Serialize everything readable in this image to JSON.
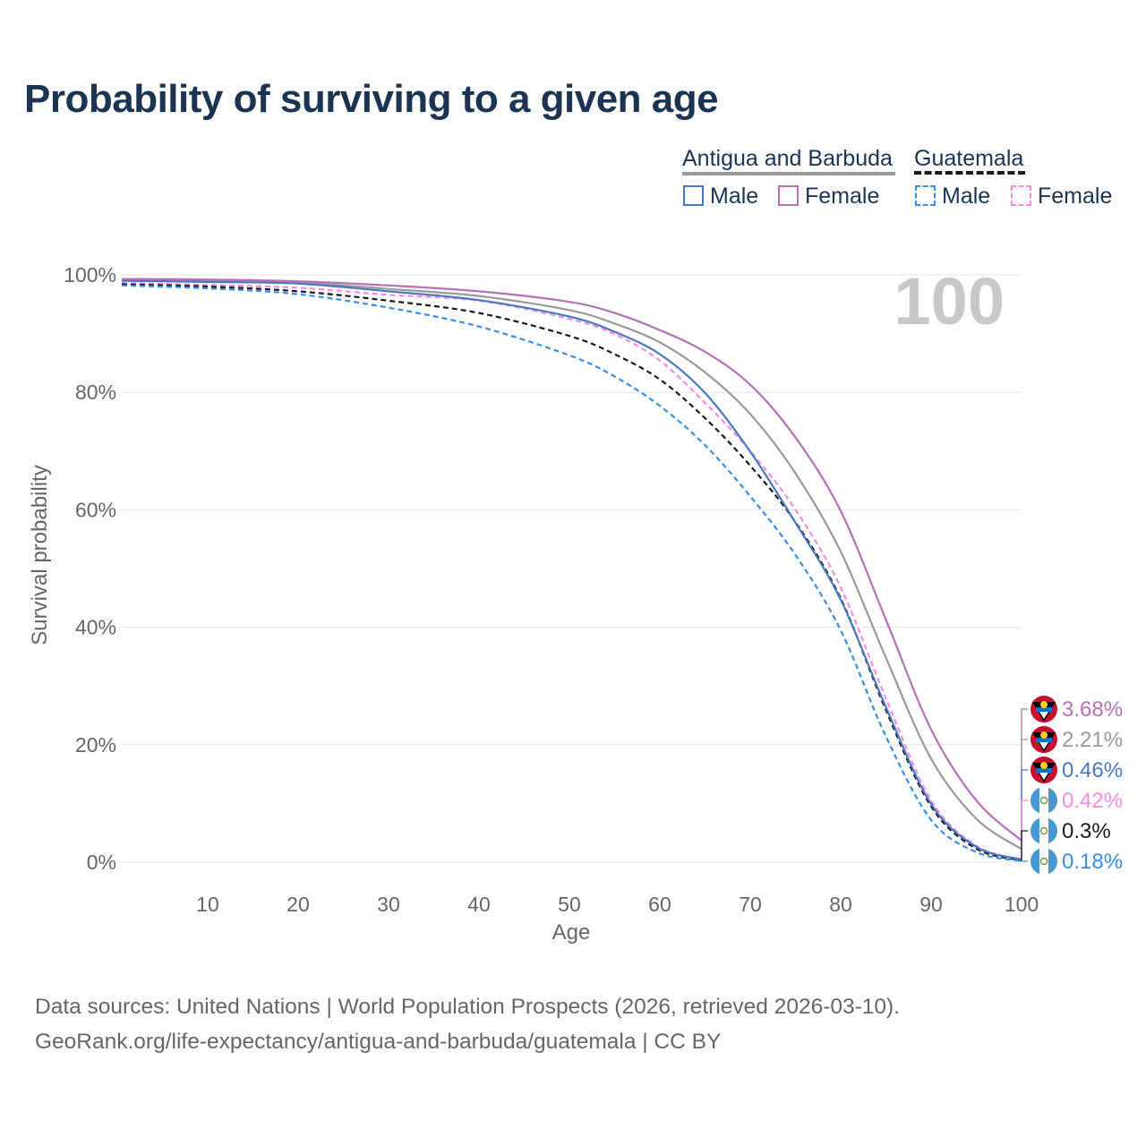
{
  "title": "Probability of surviving to a given age",
  "legend": {
    "country_a": "Antigua and Barbuda",
    "country_b": "Guatemala",
    "male": "Male",
    "female": "Female",
    "colors": {
      "a_male": "#4a78c0",
      "a_female": "#b471b4",
      "a_total": "#999999",
      "b_male": "#3a8ee8",
      "b_female": "#f58ae6",
      "b_total": "#1a1a1a"
    }
  },
  "age_watermark": "100",
  "end_labels": [
    "3.68%",
    "2.21%",
    "0.46%",
    "0.42%",
    "0.3%",
    "0.18%"
  ],
  "source": {
    "line1": "Data sources: United Nations | World Population Prospects (2026, retrieved 2026-03-10).",
    "line2": "GeoRank.org/life-expectancy/antigua-and-barbuda/guatemala | CC BY"
  },
  "chart_data": {
    "type": "line",
    "title": "Probability of surviving to a given age",
    "xlabel": "Age",
    "ylabel": "Survival probability",
    "xlim": [
      0.5,
      100
    ],
    "ylim": [
      0,
      100
    ],
    "xticks": [
      10,
      20,
      30,
      40,
      50,
      60,
      70,
      80,
      90,
      100
    ],
    "yticks": [
      0,
      20,
      40,
      60,
      80,
      100
    ],
    "ytick_labels": [
      "0%",
      "20%",
      "40%",
      "60%",
      "80%",
      "100%"
    ],
    "series": [
      {
        "name": "Antigua and Barbuda Female",
        "color": "#b471b4",
        "dashed": false,
        "end_label": "3.68%",
        "x": [
          0.5,
          10,
          20,
          30,
          40,
          50,
          55,
          60,
          65,
          70,
          75,
          80,
          85,
          90,
          95,
          100
        ],
        "y": [
          99.3,
          99.2,
          98.9,
          98.2,
          97.2,
          95.4,
          93.5,
          90.6,
          86.9,
          81.3,
          72.3,
          59.8,
          41.3,
          22.6,
          10.5,
          3.68
        ]
      },
      {
        "name": "Antigua and Barbuda Total",
        "color": "#999999",
        "dashed": false,
        "end_label": "2.21%",
        "x": [
          0.5,
          10,
          20,
          30,
          40,
          50,
          55,
          60,
          65,
          70,
          75,
          80,
          85,
          90,
          95,
          100
        ],
        "y": [
          99.1,
          99.0,
          98.7,
          97.6,
          96.4,
          94.0,
          91.7,
          88.5,
          83.4,
          76.3,
          66.2,
          52.9,
          34.8,
          17.6,
          7.4,
          2.21
        ]
      },
      {
        "name": "Antigua and Barbuda Male",
        "color": "#4a78c0",
        "dashed": false,
        "end_label": "0.46%",
        "x": [
          0.5,
          10,
          20,
          30,
          40,
          50,
          55,
          60,
          65,
          70,
          75,
          80,
          85,
          90,
          95,
          100
        ],
        "y": [
          99.0,
          98.8,
          98.5,
          97.2,
          95.7,
          92.9,
          90.3,
          86.5,
          79.9,
          69.9,
          57.8,
          44.7,
          26.4,
          9.9,
          2.6,
          0.46
        ]
      },
      {
        "name": "Guatemala Female",
        "color": "#f58ae6",
        "dashed": true,
        "end_label": "0.42%",
        "x": [
          0.5,
          10,
          20,
          30,
          40,
          50,
          55,
          60,
          65,
          70,
          75,
          80,
          85,
          90,
          95,
          100
        ],
        "y": [
          98.6,
          98.3,
          97.8,
          96.6,
          95.6,
          92.5,
          89.9,
          85.4,
          78.2,
          70.0,
          60.0,
          46.8,
          27.9,
          10.5,
          2.8,
          0.42
        ]
      },
      {
        "name": "Guatemala Total",
        "color": "#1a1a1a",
        "dashed": true,
        "end_label": "0.3%",
        "x": [
          0.5,
          10,
          20,
          30,
          40,
          50,
          55,
          60,
          65,
          70,
          75,
          80,
          85,
          90,
          95,
          100
        ],
        "y": [
          98.4,
          98.0,
          97.2,
          95.6,
          93.5,
          89.6,
          86.5,
          82.2,
          75.6,
          67.5,
          57.9,
          44.9,
          25.9,
          9.5,
          2.3,
          0.3
        ]
      },
      {
        "name": "Guatemala Male",
        "color": "#3a8ee8",
        "dashed": true,
        "end_label": "0.18%",
        "x": [
          0.5,
          10,
          20,
          30,
          40,
          50,
          55,
          60,
          65,
          70,
          75,
          80,
          85,
          90,
          95,
          100
        ],
        "y": [
          98.2,
          97.7,
          96.7,
          94.4,
          91.2,
          86.3,
          82.7,
          77.7,
          71.0,
          62.3,
          52.3,
          39.5,
          21.4,
          7.2,
          1.7,
          0.18
        ]
      }
    ]
  }
}
